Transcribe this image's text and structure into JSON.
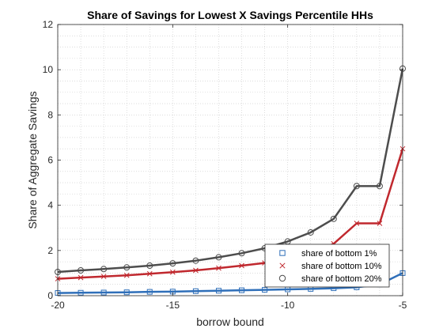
{
  "chart_data": {
    "type": "line",
    "title": "Share of Savings for Lowest X Savings Percentile HHs",
    "xlabel": "borrow bound",
    "ylabel": "Share of Aggregate Savings",
    "xlim": [
      -20,
      -5
    ],
    "ylim": [
      0,
      12
    ],
    "xticks": [
      -20,
      -15,
      -10,
      -5
    ],
    "yticks": [
      0,
      2,
      4,
      6,
      8,
      10,
      12
    ],
    "grid": "minor dotted",
    "legend_position": "bottom-right",
    "x": [
      -20,
      -19,
      -18,
      -17,
      -16,
      -15,
      -14,
      -13,
      -12,
      -11,
      -10,
      -9,
      -8,
      -7,
      -6,
      -5
    ],
    "series": [
      {
        "name": "share of bottom 1%",
        "marker": "square",
        "color": "#2f6fb9",
        "values": [
          0.12,
          0.13,
          0.14,
          0.15,
          0.17,
          0.18,
          0.2,
          0.22,
          0.24,
          0.26,
          0.28,
          0.3,
          0.33,
          0.37,
          0.5,
          1.0
        ]
      },
      {
        "name": "share of bottom 10%",
        "marker": "x",
        "color": "#c0282e",
        "values": [
          0.75,
          0.8,
          0.85,
          0.9,
          0.97,
          1.04,
          1.12,
          1.22,
          1.33,
          1.45,
          1.6,
          1.85,
          2.3,
          3.2,
          3.2,
          6.5
        ]
      },
      {
        "name": "share of bottom 20%",
        "marker": "circle",
        "color": "#4d4d4d",
        "values": [
          1.05,
          1.12,
          1.18,
          1.25,
          1.33,
          1.43,
          1.55,
          1.7,
          1.88,
          2.1,
          2.4,
          2.8,
          3.4,
          4.85,
          4.85,
          10.05
        ]
      }
    ]
  }
}
